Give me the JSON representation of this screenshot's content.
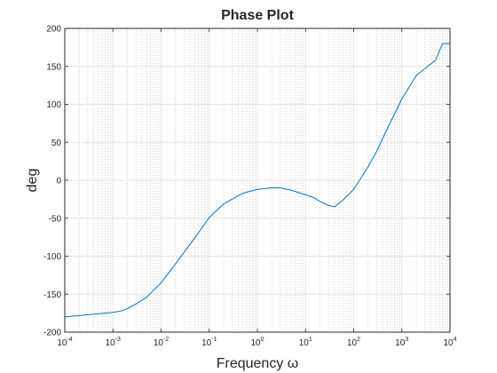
{
  "chart_data": {
    "type": "line",
    "title": "Phase Plot",
    "xlabel": "Frequency ω",
    "ylabel": "deg",
    "xscale": "log",
    "xlim": [
      0.0001,
      10000
    ],
    "ylim": [
      -200,
      200
    ],
    "grid": true,
    "minor_grid": true,
    "yticks": [
      -200,
      -150,
      -100,
      -50,
      0,
      50,
      100,
      150,
      200
    ],
    "xticks": [
      {
        "value": 0.0001,
        "base": "10",
        "exp": "-4"
      },
      {
        "value": 0.001,
        "base": "10",
        "exp": "-3"
      },
      {
        "value": 0.01,
        "base": "10",
        "exp": "-2"
      },
      {
        "value": 0.1,
        "base": "10",
        "exp": "-1"
      },
      {
        "value": 1,
        "base": "10",
        "exp": "0"
      },
      {
        "value": 10,
        "base": "10",
        "exp": "1"
      },
      {
        "value": 100,
        "base": "10",
        "exp": "2"
      },
      {
        "value": 1000,
        "base": "10",
        "exp": "3"
      },
      {
        "value": 10000,
        "base": "10",
        "exp": "4"
      }
    ],
    "series": [
      {
        "color": "#0072bd",
        "x": [
          0.0001,
          0.0003,
          0.001,
          0.0015,
          0.002,
          0.003,
          0.005,
          0.01,
          0.02,
          0.05,
          0.1,
          0.2,
          0.5,
          1,
          2,
          3,
          5,
          10,
          15,
          20,
          30,
          40,
          60,
          100,
          200,
          300,
          500,
          1000,
          2000,
          5000,
          7000,
          10000
        ],
        "y": [
          -180,
          -177,
          -174,
          -172,
          -169,
          -163,
          -154,
          -135,
          -110,
          -76,
          -49,
          -31,
          -17,
          -12,
          -10,
          -10,
          -13,
          -19,
          -23,
          -28,
          -33,
          -35,
          -26,
          -12,
          18,
          38,
          68,
          107,
          138,
          158,
          180,
          180
        ]
      }
    ]
  }
}
